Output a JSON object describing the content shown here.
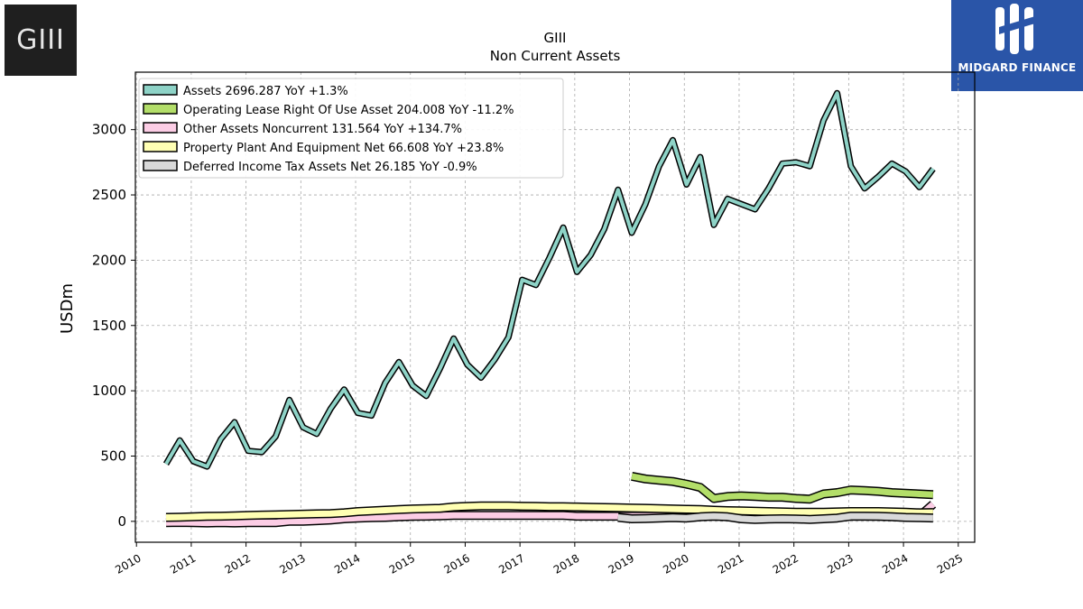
{
  "logos": {
    "left_text": "GIII",
    "right_text": "MIDGARD FINANCE"
  },
  "chart_data": {
    "type": "line",
    "title": "GIII",
    "subtitle": "Non Current  Assets",
    "ylabel": "USDm",
    "xlabel": "",
    "xlim": [
      2009.98,
      2025.3
    ],
    "ylim": [
      -160,
      3440
    ],
    "x_ticks": [
      "2010",
      "2011",
      "2012",
      "2013",
      "2014",
      "2015",
      "2016",
      "2017",
      "2018",
      "2019",
      "2020",
      "2021",
      "2022",
      "2023",
      "2024",
      "2025"
    ],
    "y_ticks": [
      0,
      500,
      1000,
      1500,
      2000,
      2500,
      3000
    ],
    "grid": true,
    "legend_position": "top-left",
    "series": [
      {
        "name": "Assets  2696.287 YoY +1.3%",
        "color": "#8ed3c7",
        "x": [
          2010.54,
          2010.79,
          2011.04,
          2011.29,
          2011.54,
          2011.79,
          2012.04,
          2012.29,
          2012.54,
          2012.79,
          2013.04,
          2013.29,
          2013.54,
          2013.79,
          2014.04,
          2014.29,
          2014.54,
          2014.79,
          2015.04,
          2015.29,
          2015.54,
          2015.79,
          2016.04,
          2016.29,
          2016.54,
          2016.79,
          2017.04,
          2017.29,
          2017.54,
          2017.79,
          2018.04,
          2018.29,
          2018.54,
          2018.79,
          2019.04,
          2019.29,
          2019.54,
          2019.79,
          2020.04,
          2020.29,
          2020.54,
          2020.79,
          2021.04,
          2021.29,
          2021.54,
          2021.79,
          2022.04,
          2022.29,
          2022.54,
          2022.79,
          2023.04,
          2023.29,
          2023.54,
          2023.79,
          2024.04,
          2024.29,
          2024.54
        ],
        "y": [
          440,
          620,
          460,
          420,
          630,
          760,
          540,
          530,
          650,
          930,
          720,
          670,
          860,
          1010,
          830,
          810,
          1060,
          1220,
          1040,
          960,
          1170,
          1400,
          1200,
          1100,
          1240,
          1410,
          1850,
          1810,
          2020,
          2250,
          1910,
          2040,
          2240,
          2540,
          2210,
          2430,
          2720,
          2920,
          2580,
          2790,
          2270,
          2470,
          2430,
          2390,
          2550,
          2740,
          2750,
          2720,
          3070,
          3280,
          2720,
          2550,
          2640,
          2740,
          2680,
          2560,
          2700
        ]
      },
      {
        "name": "Operating Lease Right Of Use Asset  204.008 YoY -11.2%",
        "color": "#b3de69",
        "x": [
          2019.04,
          2019.29,
          2019.54,
          2019.79,
          2020.04,
          2020.29,
          2020.54,
          2020.79,
          2021.04,
          2021.29,
          2021.54,
          2021.79,
          2022.04,
          2022.29,
          2022.54,
          2022.79,
          2023.04,
          2023.29,
          2023.54,
          2023.79,
          2024.04,
          2024.29,
          2024.54
        ],
        "y": [
          345,
          325,
          315,
          305,
          285,
          260,
          175,
          190,
          195,
          190,
          185,
          185,
          175,
          170,
          210,
          220,
          240,
          235,
          230,
          220,
          215,
          210,
          204
        ]
      },
      {
        "name": "Other Assets Noncurrent  131.564 YoY +134.7%",
        "color": "#fccde5",
        "x": [
          2010.54,
          2010.79,
          2011.04,
          2011.29,
          2011.54,
          2011.79,
          2012.04,
          2012.29,
          2012.54,
          2012.79,
          2013.04,
          2013.29,
          2013.54,
          2013.79,
          2014.04,
          2014.29,
          2014.54,
          2014.79,
          2015.04,
          2015.29,
          2015.54,
          2015.79,
          2016.04,
          2016.29,
          2016.54,
          2016.79,
          2017.04,
          2017.29,
          2017.54,
          2017.79,
          2018.04,
          2018.29,
          2018.54,
          2018.79,
          2019.04,
          2019.29,
          2019.54,
          2019.79,
          2020.04,
          2020.29,
          2020.54,
          2020.79,
          2021.04,
          2021.29,
          2021.54,
          2021.79,
          2022.04,
          2022.29,
          2022.54,
          2022.79,
          2023.04,
          2023.29,
          2023.54,
          2023.79,
          2024.04,
          2024.29,
          2024.54
        ],
        "y": [
          -10,
          -8,
          -10,
          -12,
          -10,
          -12,
          -10,
          -10,
          -10,
          0,
          0,
          5,
          10,
          20,
          25,
          28,
          30,
          35,
          38,
          40,
          42,
          45,
          45,
          45,
          45,
          45,
          45,
          45,
          45,
          45,
          40,
          40,
          40,
          40,
          40,
          40,
          40,
          40,
          40,
          40,
          40,
          40,
          40,
          40,
          40,
          40,
          40,
          40,
          40,
          40,
          40,
          40,
          40,
          40,
          40,
          40,
          131
        ]
      },
      {
        "name": "Property Plant And Equipment Net  66.608 YoY +23.8%",
        "color": "#ffffb3",
        "x": [
          2010.54,
          2010.79,
          2011.04,
          2011.29,
          2011.54,
          2011.79,
          2012.04,
          2012.29,
          2012.54,
          2012.79,
          2013.04,
          2013.29,
          2013.54,
          2013.79,
          2014.04,
          2014.29,
          2014.54,
          2014.79,
          2015.04,
          2015.29,
          2015.54,
          2015.79,
          2016.04,
          2016.29,
          2016.54,
          2016.79,
          2017.04,
          2017.29,
          2017.54,
          2017.79,
          2018.04,
          2018.29,
          2018.54,
          2018.79,
          2019.04,
          2019.29,
          2019.54,
          2019.79,
          2020.04,
          2020.29,
          2020.54,
          2020.79,
          2021.04,
          2021.29,
          2021.54,
          2021.79,
          2022.04,
          2022.29,
          2022.54,
          2022.79,
          2023.04,
          2023.29,
          2023.54,
          2023.79,
          2024.04,
          2024.29,
          2024.54
        ],
        "y": [
          30,
          32,
          35,
          38,
          40,
          42,
          45,
          48,
          50,
          52,
          55,
          58,
          60,
          65,
          75,
          80,
          85,
          90,
          95,
          98,
          100,
          110,
          115,
          118,
          118,
          118,
          116,
          114,
          112,
          112,
          110,
          108,
          106,
          104,
          102,
          100,
          98,
          95,
          92,
          90,
          85,
          82,
          80,
          78,
          75,
          72,
          70,
          70,
          70,
          72,
          75,
          75,
          75,
          72,
          70,
          65,
          67
        ]
      },
      {
        "name": "Deferred Income Tax Assets Net  26.185 YoY -0.9%",
        "color": "#d9d9d9",
        "x": [
          2018.79,
          2019.04,
          2019.29,
          2019.54,
          2019.79,
          2020.04,
          2020.29,
          2020.54,
          2020.79,
          2021.04,
          2021.29,
          2021.54,
          2021.79,
          2022.04,
          2022.29,
          2022.54,
          2022.79,
          2023.04,
          2023.29,
          2023.54,
          2023.79,
          2024.04,
          2024.29,
          2024.54
        ],
        "y": [
          30,
          20,
          22,
          25,
          28,
          25,
          35,
          40,
          35,
          20,
          15,
          18,
          20,
          18,
          15,
          20,
          25,
          40,
          40,
          38,
          35,
          30,
          28,
          26
        ]
      }
    ]
  }
}
